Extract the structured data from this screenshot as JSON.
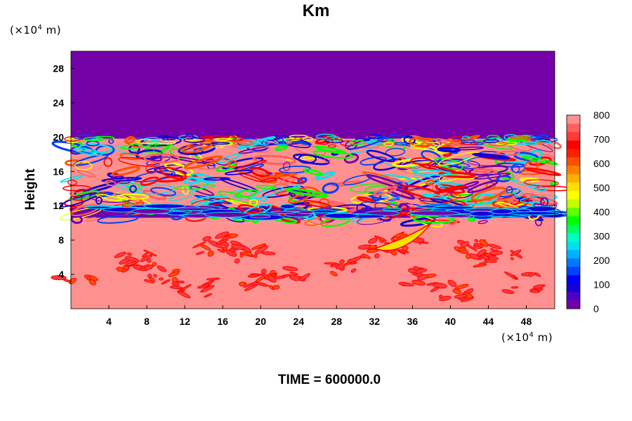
{
  "title": "Km",
  "y_unit_prefix": "(×10",
  "y_unit_exp": "4",
  "y_unit_suffix": " m)",
  "x_unit_prefix": "(×10",
  "x_unit_exp": "4",
  "x_unit_suffix": " m)",
  "time_label": "TIME = 600000.0",
  "chart_data": {
    "type": "heatmap",
    "title": "Km",
    "xlabel": "",
    "ylabel": "Height",
    "xlim": [
      0,
      51
    ],
    "ylim": [
      0,
      30
    ],
    "x_ticks": [
      4,
      8,
      12,
      16,
      20,
      24,
      28,
      32,
      36,
      40,
      44,
      48
    ],
    "y_ticks": [
      4,
      8,
      12,
      16,
      20,
      24,
      28
    ],
    "colorbar": {
      "min": 0,
      "max": 800,
      "tick_values": [
        0,
        100,
        200,
        300,
        400,
        500,
        600,
        700,
        800
      ],
      "levels": [
        "#7400a8",
        "#4e00c8",
        "#1400d8",
        "#0000f8",
        "#0040ff",
        "#0078ff",
        "#00b0ff",
        "#00e0f0",
        "#00ffc0",
        "#00ff60",
        "#00ff00",
        "#60ff00",
        "#c0ff00",
        "#ffff00",
        "#ffe000",
        "#ffb000",
        "#ff8000",
        "#ff5000",
        "#ff2000",
        "#ff0000",
        "#ff3a3a",
        "#ff6060",
        "#ff9090"
      ]
    },
    "regions": [
      {
        "y_from": 19.8,
        "y_to": 30,
        "value": 0,
        "description_level": "upper uniform layer"
      },
      {
        "y_from": 10,
        "y_to": 19.8,
        "value": 800,
        "description_level": "turbulent band with embedded low values"
      },
      {
        "y_from": 10.6,
        "y_to": 11.8,
        "value": 0,
        "description_level": "low-value filament near 11"
      },
      {
        "y_from": 0,
        "y_to": 10,
        "value": 800,
        "description_level": "lower layer with scattered 600-700 patches"
      }
    ]
  }
}
